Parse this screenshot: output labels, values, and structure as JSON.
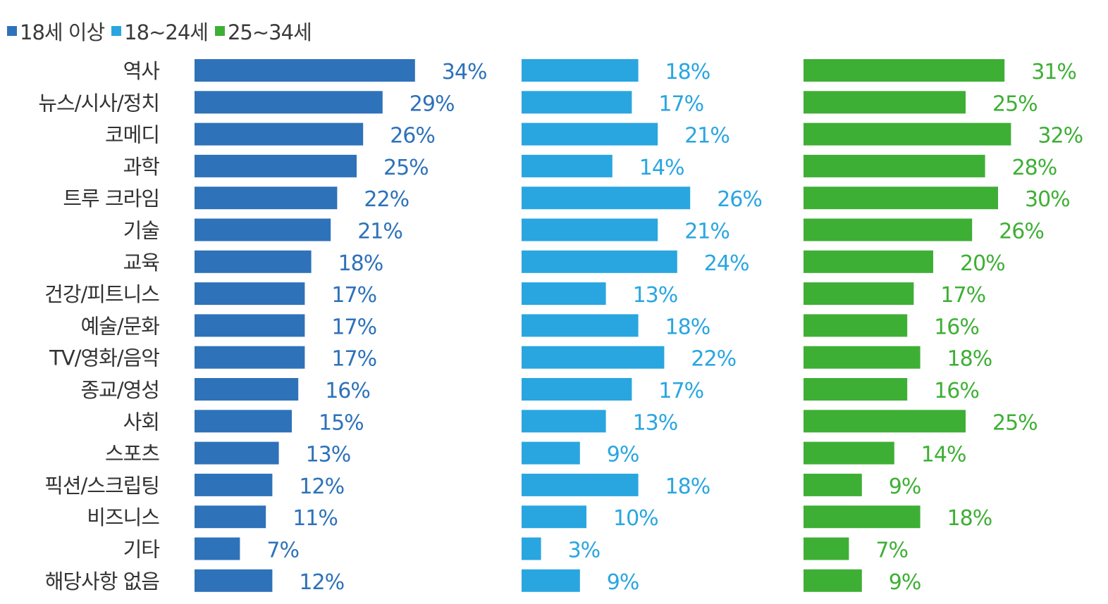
{
  "chart_data": {
    "type": "bar",
    "orientation": "horizontal",
    "layout": "three side-by-side bar panels sharing category labels",
    "legend_position": "top-left",
    "grid": false,
    "xlim": [
      0,
      36
    ],
    "value_suffix": "%",
    "colors": {
      "18세 이상": "#2e72b9",
      "18~24세": "#29a6e0",
      "25~34세": "#3eaf35"
    },
    "categories": [
      "역사",
      "뉴스/시사/정치",
      "코메디",
      "과학",
      "트루 크라임",
      "기술",
      "교육",
      "건강/피트니스",
      "예술/문화",
      "TV/영화/음악",
      "종교/영성",
      "사회",
      "스포츠",
      "픽션/스크립팅",
      "비즈니스",
      "기타",
      "해당사항 없음"
    ],
    "series": [
      {
        "name": "18세 이상",
        "values": [
          34,
          29,
          26,
          25,
          22,
          21,
          18,
          17,
          17,
          17,
          16,
          15,
          13,
          12,
          11,
          7,
          12
        ]
      },
      {
        "name": "18~24세",
        "values": [
          18,
          17,
          21,
          14,
          26,
          21,
          24,
          13,
          18,
          22,
          17,
          13,
          9,
          18,
          10,
          3,
          9
        ]
      },
      {
        "name": "25~34세",
        "values": [
          31,
          25,
          32,
          28,
          30,
          26,
          20,
          17,
          16,
          18,
          16,
          25,
          14,
          9,
          18,
          7,
          9
        ]
      }
    ]
  }
}
